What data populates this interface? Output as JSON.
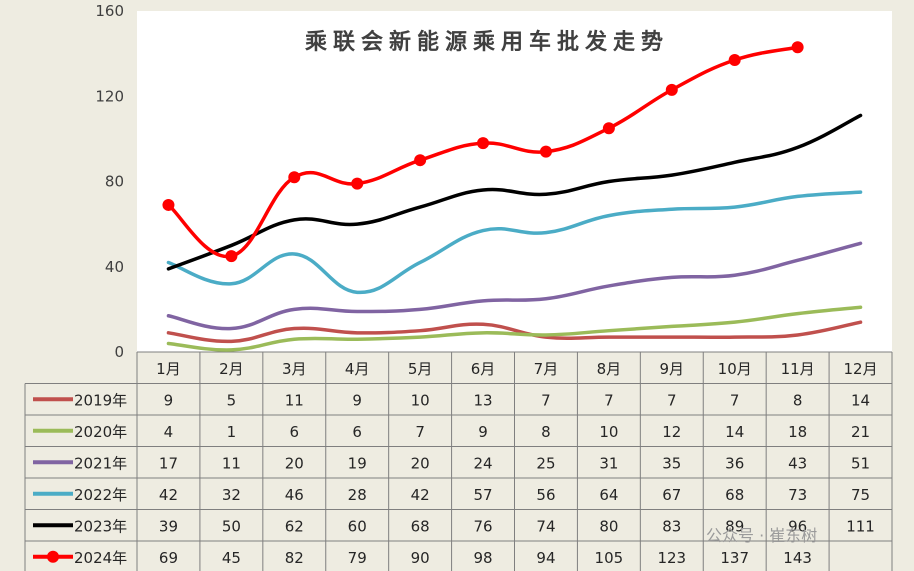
{
  "watermark": "公众号 · 崔东树",
  "chart_data": {
    "type": "line",
    "title": "乘联会新能源乘用车批发走势",
    "categories": [
      "1月",
      "2月",
      "3月",
      "4月",
      "5月",
      "6月",
      "7月",
      "8月",
      "9月",
      "10月",
      "11月",
      "12月"
    ],
    "ylim": [
      0,
      160
    ],
    "yticks": [
      0,
      40,
      80,
      120,
      160
    ],
    "grid": false,
    "legend": "data-table-left",
    "series": [
      {
        "name": "2019年",
        "color": "#C0504D",
        "marker": false,
        "values": [
          9,
          5,
          11,
          9,
          10,
          13,
          7,
          7,
          7,
          7,
          8,
          14
        ]
      },
      {
        "name": "2020年",
        "color": "#9BBB59",
        "marker": false,
        "values": [
          4,
          1,
          6,
          6,
          7,
          9,
          8,
          10,
          12,
          14,
          18,
          21
        ]
      },
      {
        "name": "2021年",
        "color": "#8064A2",
        "marker": false,
        "values": [
          17,
          11,
          20,
          19,
          20,
          24,
          25,
          31,
          35,
          36,
          43,
          51
        ]
      },
      {
        "name": "2022年",
        "color": "#4BACC6",
        "marker": false,
        "values": [
          42,
          32,
          46,
          28,
          42,
          57,
          56,
          64,
          67,
          68,
          73,
          75
        ]
      },
      {
        "name": "2023年",
        "color": "#000000",
        "marker": false,
        "values": [
          39,
          50,
          62,
          60,
          68,
          76,
          74,
          80,
          83,
          89,
          96,
          111
        ]
      },
      {
        "name": "2024年",
        "color": "#FF0000",
        "marker": true,
        "values": [
          69,
          45,
          82,
          79,
          90,
          98,
          94,
          105,
          123,
          137,
          143,
          null
        ]
      }
    ]
  }
}
